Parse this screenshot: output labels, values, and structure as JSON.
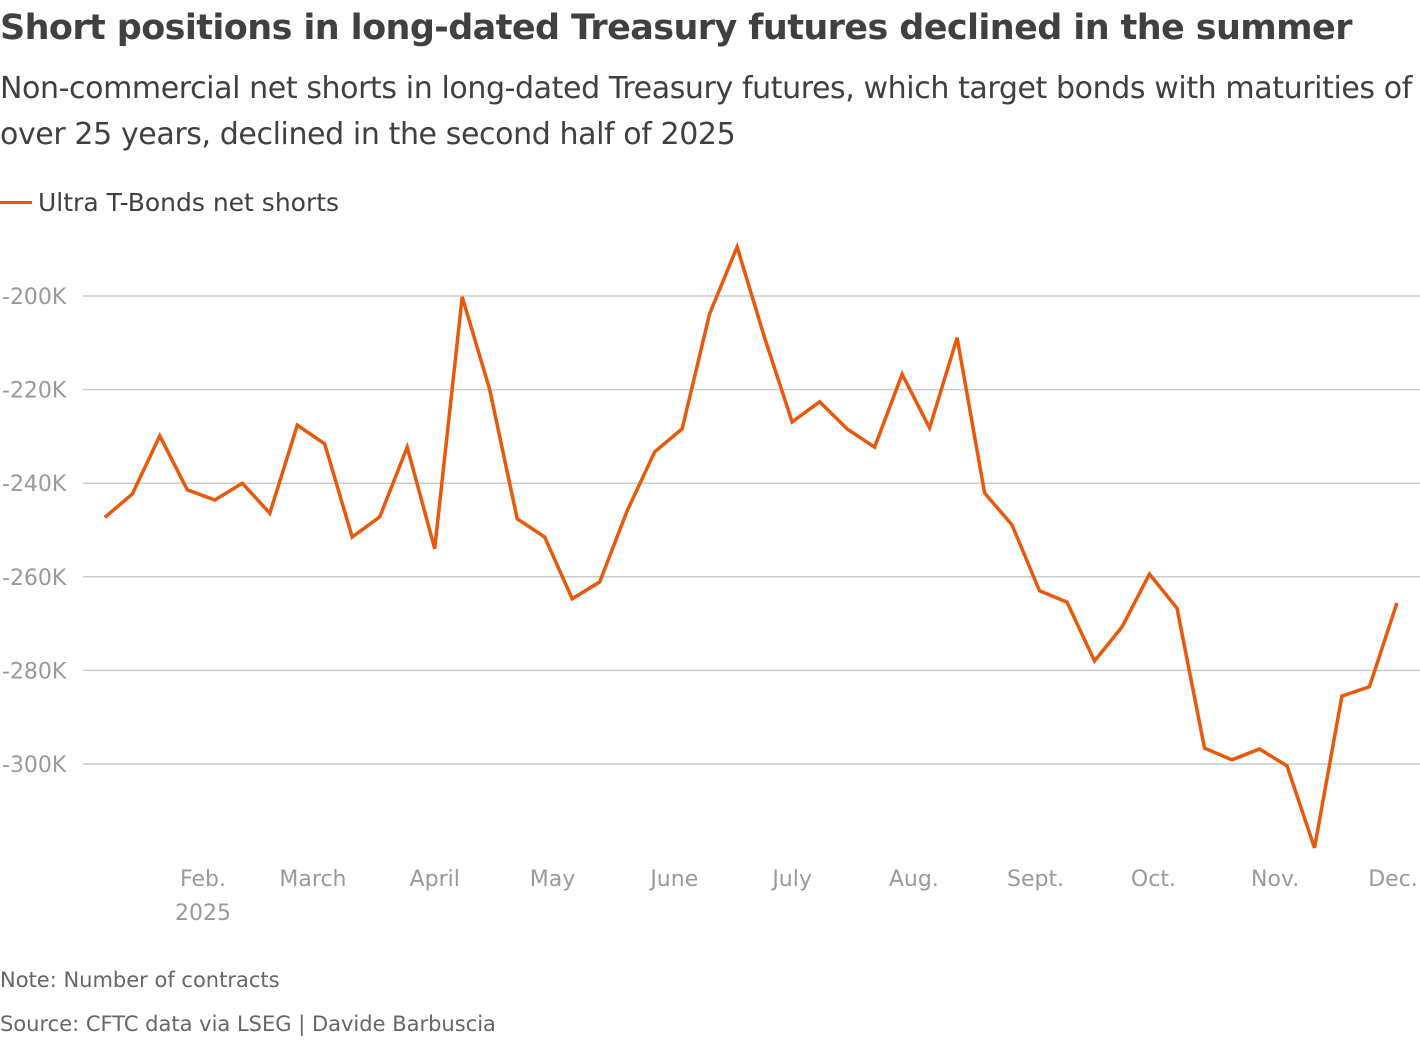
{
  "title": "Short positions in long-dated Treasury futures declined in the summer",
  "subtitle": "Non-commercial net shorts in long-dated Treasury futures, which target bonds with maturities of over 25 years, declined in the second half of 2025",
  "note": "Note: Number of contracts",
  "source": "Source: CFTC data via LSEG | Davide Barbuscia",
  "colors": {
    "series": "#e8590c",
    "grid": "#cccccc",
    "tick": "#9a9a9a"
  },
  "chart_data": {
    "type": "line",
    "title": "Short positions in long-dated Treasury futures declined in the summer",
    "xlabel": "",
    "ylabel": "",
    "ylim": [
      -320000,
      -185000
    ],
    "xlim": [
      "2025-01-07",
      "2025-12-02"
    ],
    "grid": true,
    "legend_position": "top-left",
    "y_ticks": [
      {
        "value": -200000,
        "label": "-200K"
      },
      {
        "value": -220000,
        "label": "-220K"
      },
      {
        "value": -240000,
        "label": "-240K"
      },
      {
        "value": -260000,
        "label": "-260K"
      },
      {
        "value": -280000,
        "label": "-280K"
      },
      {
        "value": -300000,
        "label": "-300K"
      }
    ],
    "x_ticks": [
      {
        "date": "2025-02-01",
        "label": "Feb.",
        "sublabel": "2025"
      },
      {
        "date": "2025-03-01",
        "label": "March"
      },
      {
        "date": "2025-04-01",
        "label": "April"
      },
      {
        "date": "2025-05-01",
        "label": "May"
      },
      {
        "date": "2025-06-01",
        "label": "June"
      },
      {
        "date": "2025-07-01",
        "label": "July"
      },
      {
        "date": "2025-08-01",
        "label": "Aug."
      },
      {
        "date": "2025-09-01",
        "label": "Sept."
      },
      {
        "date": "2025-10-01",
        "label": "Oct."
      },
      {
        "date": "2025-11-01",
        "label": "Nov."
      },
      {
        "date": "2025-12-01",
        "label": "Dec."
      }
    ],
    "series": [
      {
        "name": "Ultra T-Bonds net shorts",
        "x": [
          "2025-01-07",
          "2025-01-14",
          "2025-01-21",
          "2025-01-28",
          "2025-02-04",
          "2025-02-11",
          "2025-02-18",
          "2025-02-25",
          "2025-03-04",
          "2025-03-11",
          "2025-03-18",
          "2025-03-25",
          "2025-04-01",
          "2025-04-08",
          "2025-04-15",
          "2025-04-22",
          "2025-04-29",
          "2025-05-06",
          "2025-05-13",
          "2025-05-20",
          "2025-05-27",
          "2025-06-03",
          "2025-06-10",
          "2025-06-17",
          "2025-06-24",
          "2025-07-01",
          "2025-07-08",
          "2025-07-15",
          "2025-07-22",
          "2025-07-29",
          "2025-08-05",
          "2025-08-12",
          "2025-08-19",
          "2025-08-26",
          "2025-09-02",
          "2025-09-09",
          "2025-09-16",
          "2025-09-23",
          "2025-09-30",
          "2025-10-07",
          "2025-10-14",
          "2025-10-21",
          "2025-10-28",
          "2025-11-04",
          "2025-11-11",
          "2025-11-18",
          "2025-11-25",
          "2025-12-02"
        ],
        "values": [
          -247300,
          -242300,
          -229900,
          -241400,
          -243600,
          -240000,
          -246400,
          -227600,
          -231600,
          -251500,
          -247200,
          -232300,
          -254000,
          -200200,
          -220000,
          -247600,
          -251500,
          -264700,
          -261100,
          -245900,
          -233300,
          -228400,
          -203800,
          -189500,
          -208900,
          -226900,
          -222600,
          -228400,
          -232300,
          -216700,
          -228200,
          -208900,
          -242100,
          -248900,
          -263000,
          -265400,
          -278000,
          -270700,
          -259400,
          -266700,
          -296600,
          -299100,
          -296800,
          -300400,
          -317900,
          -285500,
          -283500,
          -265600
        ]
      }
    ]
  }
}
